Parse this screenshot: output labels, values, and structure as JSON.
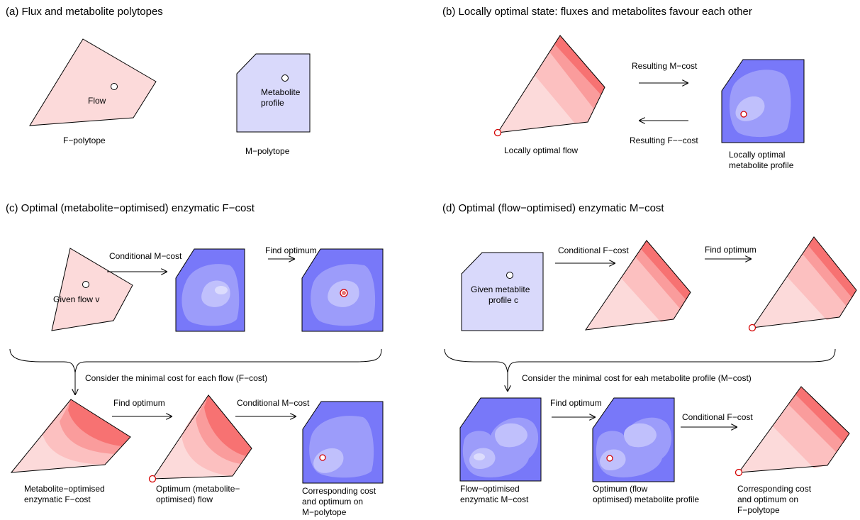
{
  "panels": {
    "a": {
      "title": "(a) Flux and metabolite polytopes",
      "flow_label": "Flow",
      "metabolite_label_1": "Metabolite",
      "metabolite_label_2": "profile",
      "f_polytope_label": "F−polytope",
      "m_polytope_label": "M−polytope"
    },
    "b": {
      "title": "(b) Locally optimal state: fluxes and metabolites favour each other",
      "arrow_top_label": "Resulting M−cost",
      "arrow_bottom_label": "Resulting F−−cost",
      "flow_caption": "Locally optimal flow",
      "metab_caption_1": "Locally optimal",
      "metab_caption_2": "metabolite profile"
    },
    "c": {
      "title": "(c) Optimal (metabolite−optimised) enzymatic F−cost",
      "given_flow_label": "Given flow v",
      "arrow1_label": "Conditional M−cost",
      "arrow2_label": "Find optimum",
      "brace_label": "Consider the minimal cost for each flow (F−cost)",
      "arrow3_label": "Find optimum",
      "arrow4_label": "Conditional M−cost",
      "caption1_1": "Metabolite−optimised",
      "caption1_2": "enzymatic F−cost",
      "caption2_1": "Optimum (metabolite−",
      "caption2_2": "optimised) flow",
      "caption3_1": "Corresponding cost",
      "caption3_2": "and optimum on",
      "caption3_3": "M−polytope"
    },
    "d": {
      "title": "(d) Optimal (flow−optimised) enzymatic M−cost",
      "given_label_1": "Given metablite",
      "given_label_2": "profile c",
      "arrow1_label": "Conditional F−cost",
      "arrow2_label": "Find optimum",
      "brace_label": "Consider the minimal cost for eah metabolite profile (M−cost)",
      "arrow3_label": "Find optimum",
      "arrow4_label": "Conditional F−cost",
      "caption1_1": "Flow−optimised",
      "caption1_2": "enzymatic M−cost",
      "caption2_1": "Optimum (flow",
      "caption2_2": "optimised) metabolite profile",
      "caption3_1": "Corresponding cost",
      "caption3_2": "and optimum on",
      "caption3_3": "F−polytope"
    }
  },
  "colors": {
    "flux_light": "#fcdada",
    "flux_mid1": "#fcc0c0",
    "flux_mid2": "#fa9c9c",
    "flux_dark": "#f77272",
    "metab_light": "#d9d9fb",
    "metab_blue": "#7878f9",
    "metab_mid": "#9c9cfa",
    "metab_pale": "#c0c0fc",
    "metab_core": "#dcdcfd",
    "optimum_ring": "#d40000"
  }
}
